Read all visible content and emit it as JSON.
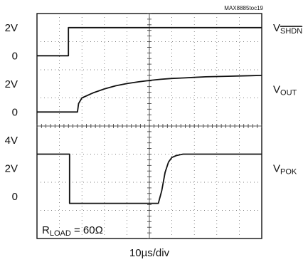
{
  "figure_id": "MAX8885toc19",
  "chart_data": {
    "type": "line",
    "xlabel": "10µs/div",
    "grid": true,
    "grid_divisions": {
      "x": 10,
      "y": 8
    },
    "annotation": {
      "prefix": "R",
      "subscript": "LOAD",
      "suffix": " = 60Ω"
    },
    "y_tick_labels": [
      {
        "text": "2V",
        "div": 0.5
      },
      {
        "text": "0",
        "div": 1.5
      },
      {
        "text": "2V",
        "div": 2.5
      },
      {
        "text": "0",
        "div": 3.5
      },
      {
        "text": "4V",
        "div": 4.5
      },
      {
        "text": "2V",
        "div": 5.5
      },
      {
        "text": "0",
        "div": 6.5
      }
    ],
    "series": [
      {
        "name": "VSHDN",
        "label_main": "V",
        "label_sub": "SHDN",
        "label_sub_overline": true,
        "label_div": 0.5,
        "x_div": [
          0,
          1.4,
          1.4,
          10
        ],
        "y_div": [
          1.5,
          1.5,
          0.5,
          0.5
        ]
      },
      {
        "name": "VOUT",
        "label_main": "V",
        "label_sub": "OUT",
        "label_sub_overline": false,
        "label_div": 2.7,
        "x_div": [
          0,
          1.8,
          1.85,
          2.0,
          2.5,
          3.0,
          3.5,
          4.0,
          4.5,
          5.0,
          5.5,
          6.0,
          6.5,
          7.0,
          7.5,
          8.0,
          8.5,
          9.0,
          9.5,
          10
        ],
        "y_div": [
          3.5,
          3.5,
          3.2,
          3.0,
          2.82,
          2.68,
          2.57,
          2.49,
          2.43,
          2.38,
          2.34,
          2.31,
          2.29,
          2.27,
          2.25,
          2.24,
          2.23,
          2.22,
          2.21,
          2.2
        ]
      },
      {
        "name": "VPOK",
        "label_main": "V",
        "label_sub": "POK",
        "label_sub_overline": false,
        "label_div": 5.5,
        "x_div": [
          0,
          1.45,
          1.45,
          5.4,
          5.55,
          5.7,
          5.85,
          6.0,
          6.2,
          6.5,
          10
        ],
        "y_div": [
          5.0,
          5.0,
          6.75,
          6.75,
          6.3,
          5.65,
          5.28,
          5.12,
          5.05,
          5.0,
          5.0
        ]
      }
    ]
  }
}
